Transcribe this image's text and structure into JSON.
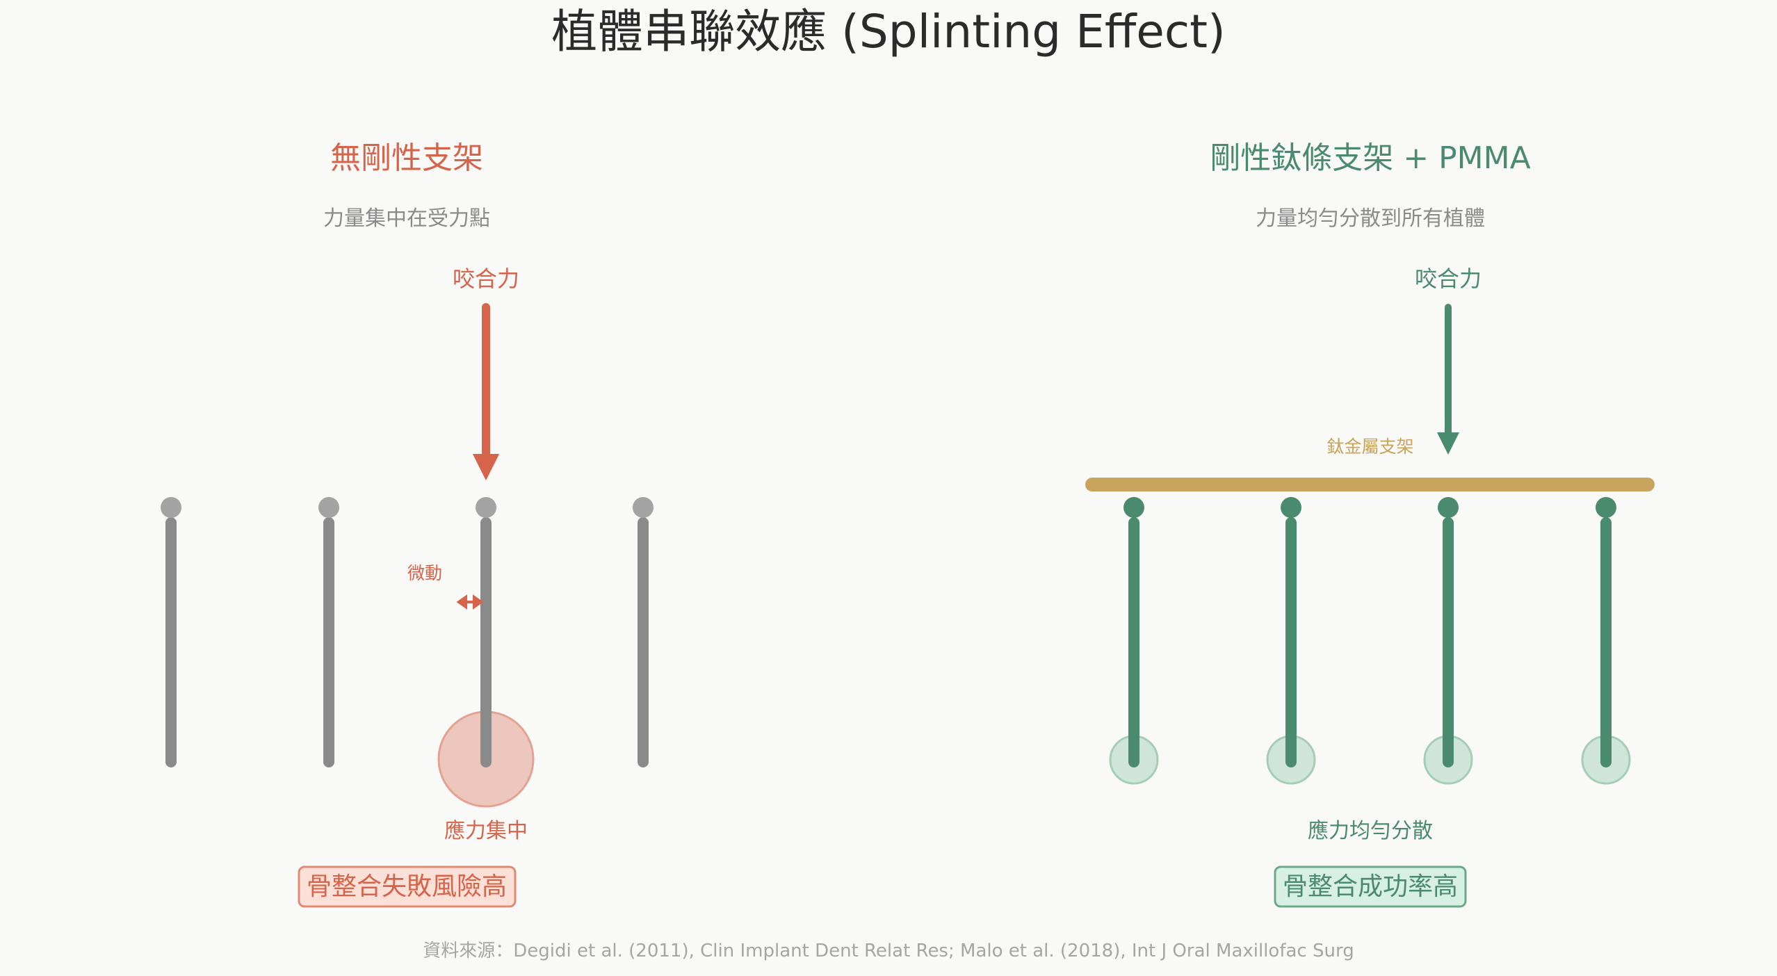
{
  "title": "植體串聯效應 (Splinting Effect)",
  "colors": {
    "background": "#f9f9f7",
    "red": "#d5644a",
    "green": "#4a8a6e",
    "gray": "#8a8a8a",
    "gray_head": "#a3a3a3",
    "gold": "#c9a45c",
    "red_badge_bg": "#fbe0d7",
    "green_badge_bg": "#d8efe3"
  },
  "left_panel": {
    "title": "無剛性支架",
    "subtitle": "力量集中在受力點",
    "force_label": "咬合力",
    "micromotion_label": "微動",
    "stress_label": "應力集中",
    "outcome": "骨整合失敗風險高"
  },
  "right_panel": {
    "title": "剛性鈦條支架 + PMMA",
    "subtitle": "力量均勻分散到所有植體",
    "force_label": "咬合力",
    "bar_label": "鈦金屬支架",
    "stress_label": "應力均勻分散",
    "outcome": "骨整合成功率高"
  },
  "citation": "資料來源：Degidi et al. (2011), Clin Implant Dent Relat Res; Malo et al. (2018), Int J Oral Maxillofac Surg"
}
